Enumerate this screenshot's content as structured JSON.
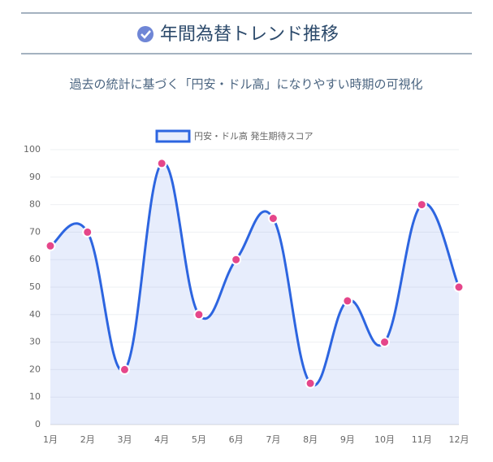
{
  "header": {
    "title": "年間為替トレンド推移",
    "subtitle": "過去の統計に基づく「円安・ドル高」になりやすい時期の可視化"
  },
  "chart_data": {
    "type": "line",
    "categories": [
      "1月",
      "2月",
      "3月",
      "4月",
      "5月",
      "6月",
      "7月",
      "8月",
      "9月",
      "10月",
      "11月",
      "12月"
    ],
    "series": [
      {
        "name": "円安・ドル高 発生期待スコア",
        "color": "#2d65e0",
        "point_color": "#e5468a",
        "fill": "rgba(59,110,230,0.12)",
        "values": [
          65,
          70,
          20,
          95,
          40,
          60,
          75,
          15,
          45,
          30,
          80,
          50
        ]
      }
    ],
    "ylim": [
      0,
      100
    ],
    "yticks": [
      0,
      10,
      20,
      30,
      40,
      50,
      60,
      70,
      80,
      90,
      100
    ],
    "grid": true,
    "legend": "top"
  }
}
